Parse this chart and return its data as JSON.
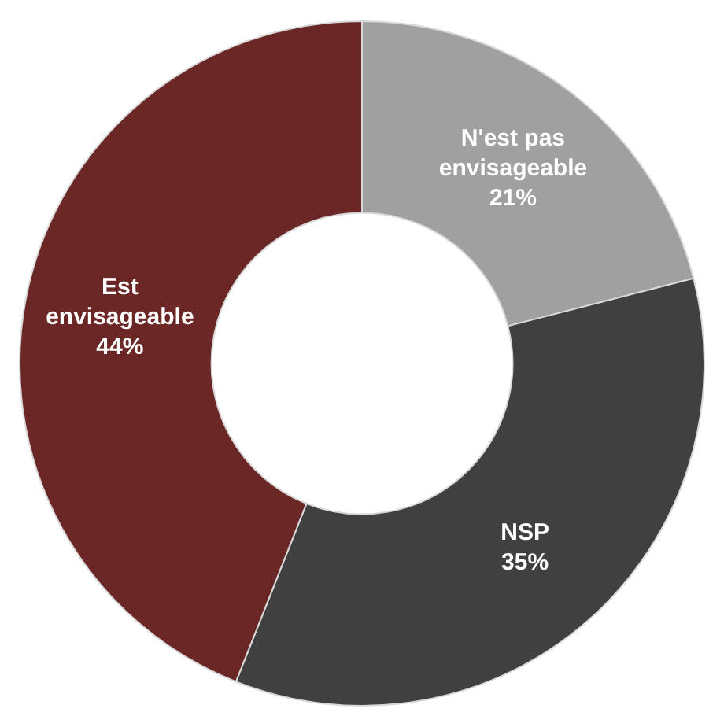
{
  "chart_data": {
    "type": "donut",
    "categories": [
      "N'est pas envisageable",
      "NSP",
      "Est envisageable"
    ],
    "values": [
      21,
      35,
      44
    ],
    "colors": [
      "#a0a0a0",
      "#404040",
      "#6b2626"
    ],
    "value_labels": [
      "21%",
      "35%",
      "44%"
    ],
    "legend": false
  }
}
